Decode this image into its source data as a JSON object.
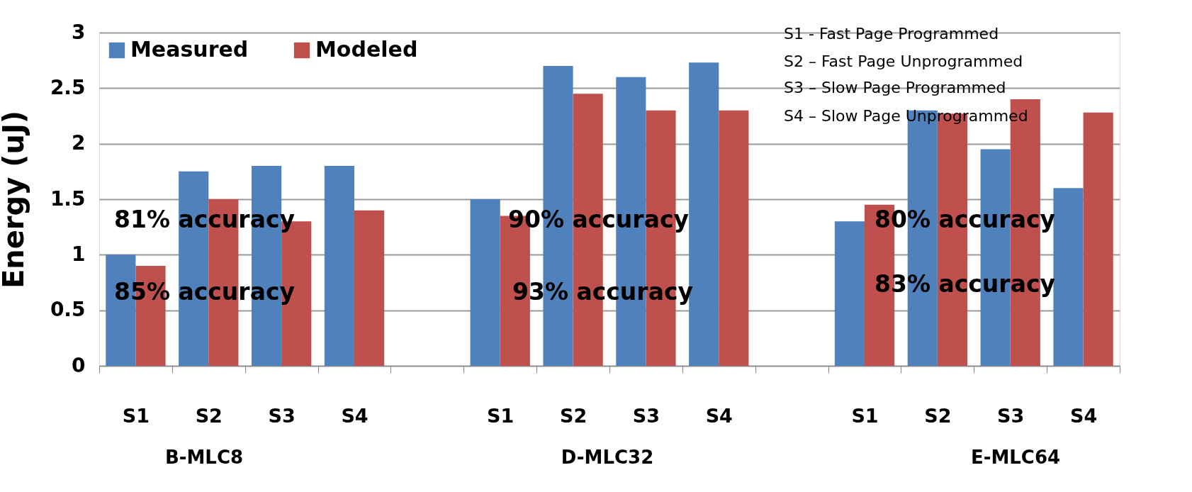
{
  "chart_data": {
    "type": "bar",
    "ylabel": "Energy (uJ)",
    "categories": [
      "S1",
      "S2",
      "S3",
      "S4",
      null,
      "S1",
      "S2",
      "S3",
      "S4",
      null,
      "S1",
      "S2",
      "S3",
      "S4"
    ],
    "series": [
      {
        "name": "Measured",
        "color": "#4f81bd",
        "values": [
          1.0,
          1.75,
          1.8,
          1.8,
          null,
          1.5,
          2.7,
          2.6,
          2.73,
          null,
          1.3,
          2.3,
          1.95,
          1.6
        ]
      },
      {
        "name": "Modeled",
        "color": "#c0504d",
        "values": [
          0.9,
          1.5,
          1.3,
          1.4,
          null,
          1.35,
          2.45,
          2.3,
          2.3,
          null,
          1.45,
          2.27,
          2.4,
          2.28
        ]
      }
    ],
    "ylim": [
      0,
      3
    ],
    "yticks": [
      0,
      0.5,
      1,
      1.5,
      2,
      2.5,
      3
    ],
    "grid": "y",
    "legend": "top left",
    "annotations": [
      "S1 -  Fast Page Programmed",
      "S2 – Fast Page Unprogrammed",
      "S3 – Slow Page Programmed",
      "S4 – Slow Page Unprogrammed",
      "81% accuracy",
      "85% accuracy",
      "90% accuracy",
      "93% accuracy",
      "80% accuracy",
      "83% accuracy",
      "B-MLC8",
      "D-MLC32",
      "E-MLC64"
    ]
  }
}
